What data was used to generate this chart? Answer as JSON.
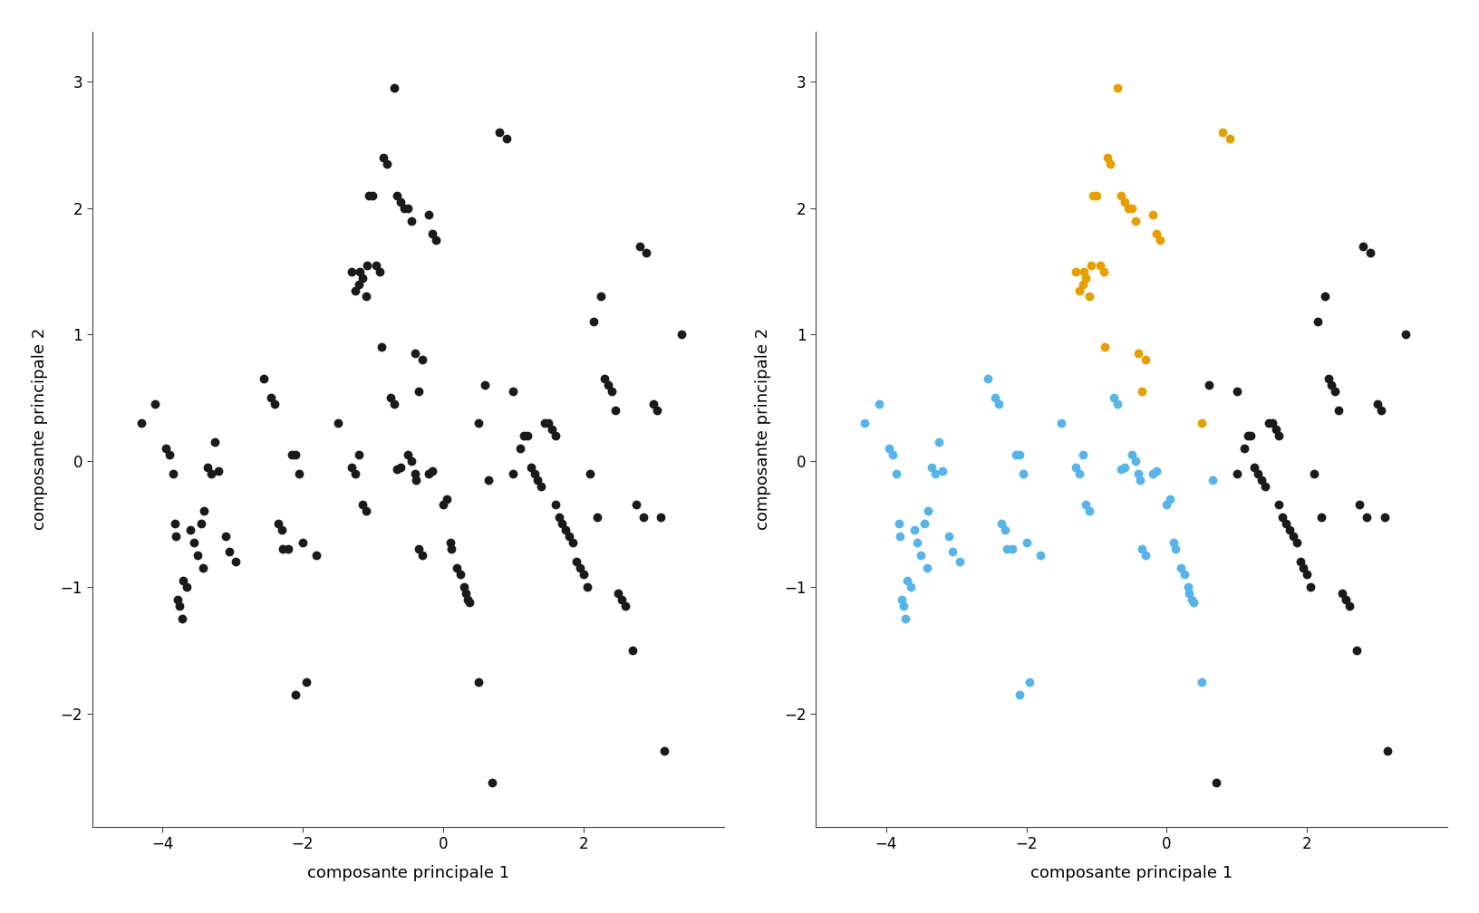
{
  "xlabel": "composante principale 1",
  "ylabel": "composante principale 2",
  "color_black": "#1a1a1a",
  "color_blue": "#56B4E9",
  "color_orange": "#E69F00",
  "blue_points": [
    [
      -4.3,
      0.3
    ],
    [
      -4.1,
      0.45
    ],
    [
      -3.95,
      0.1
    ],
    [
      -3.9,
      0.05
    ],
    [
      -3.85,
      -0.1
    ],
    [
      -3.82,
      -0.5
    ],
    [
      -3.8,
      -0.6
    ],
    [
      -3.78,
      -1.1
    ],
    [
      -3.75,
      -1.15
    ],
    [
      -3.72,
      -1.25
    ],
    [
      -3.7,
      -0.95
    ],
    [
      -3.65,
      -1.0
    ],
    [
      -3.6,
      -0.55
    ],
    [
      -3.55,
      -0.65
    ],
    [
      -3.5,
      -0.75
    ],
    [
      -3.45,
      -0.5
    ],
    [
      -3.42,
      -0.85
    ],
    [
      -3.4,
      -0.4
    ],
    [
      -3.35,
      -0.05
    ],
    [
      -3.3,
      -0.1
    ],
    [
      -3.25,
      0.15
    ],
    [
      -3.2,
      -0.08
    ],
    [
      -3.1,
      -0.6
    ],
    [
      -3.05,
      -0.72
    ],
    [
      -2.95,
      -0.8
    ],
    [
      -2.55,
      0.65
    ],
    [
      -2.45,
      0.5
    ],
    [
      -2.4,
      0.45
    ],
    [
      -2.35,
      -0.5
    ],
    [
      -2.3,
      -0.55
    ],
    [
      -2.28,
      -0.7
    ],
    [
      -2.2,
      -0.7
    ],
    [
      -2.15,
      0.05
    ],
    [
      -2.1,
      0.05
    ],
    [
      -2.05,
      -0.1
    ],
    [
      -2.0,
      -0.65
    ],
    [
      -1.95,
      -1.75
    ],
    [
      -1.8,
      -0.75
    ],
    [
      -1.5,
      0.3
    ],
    [
      -1.3,
      -0.05
    ],
    [
      -1.25,
      -0.1
    ],
    [
      -1.2,
      0.05
    ],
    [
      -1.15,
      -0.35
    ],
    [
      -1.1,
      -0.4
    ],
    [
      -0.75,
      0.5
    ],
    [
      -0.7,
      0.45
    ],
    [
      -0.65,
      -0.07
    ],
    [
      -0.6,
      -0.05
    ],
    [
      -0.5,
      0.05
    ],
    [
      -0.45,
      0.0
    ],
    [
      -0.4,
      -0.1
    ],
    [
      -0.38,
      -0.15
    ],
    [
      -0.35,
      -0.7
    ],
    [
      -0.3,
      -0.75
    ],
    [
      -0.2,
      -0.1
    ],
    [
      -0.15,
      -0.08
    ],
    [
      -2.1,
      -1.85
    ],
    [
      -0.0,
      -0.35
    ],
    [
      0.05,
      -0.3
    ],
    [
      0.1,
      -0.65
    ],
    [
      0.12,
      -0.7
    ],
    [
      0.2,
      -0.85
    ],
    [
      0.25,
      -0.9
    ],
    [
      0.3,
      -1.0
    ],
    [
      0.32,
      -1.05
    ],
    [
      0.35,
      -1.1
    ],
    [
      0.38,
      -1.12
    ],
    [
      0.5,
      -1.75
    ],
    [
      0.65,
      -0.15
    ]
  ],
  "orange_points": [
    [
      -1.3,
      1.5
    ],
    [
      -1.25,
      1.35
    ],
    [
      -1.2,
      1.4
    ],
    [
      -1.18,
      1.5
    ],
    [
      -1.15,
      1.45
    ],
    [
      -1.1,
      1.3
    ],
    [
      -1.08,
      1.55
    ],
    [
      -1.05,
      2.1
    ],
    [
      -1.0,
      2.1
    ],
    [
      -0.95,
      1.55
    ],
    [
      -0.9,
      1.5
    ],
    [
      -0.88,
      0.9
    ],
    [
      -0.85,
      2.4
    ],
    [
      -0.8,
      2.35
    ],
    [
      -0.7,
      2.95
    ],
    [
      -0.65,
      2.1
    ],
    [
      -0.6,
      2.05
    ],
    [
      -0.55,
      2.0
    ],
    [
      -0.5,
      2.0
    ],
    [
      -0.45,
      1.9
    ],
    [
      -0.4,
      0.85
    ],
    [
      -0.35,
      0.55
    ],
    [
      -0.2,
      1.95
    ],
    [
      -0.15,
      1.8
    ],
    [
      -0.1,
      1.75
    ],
    [
      0.5,
      0.3
    ],
    [
      0.8,
      2.6
    ],
    [
      0.9,
      2.55
    ],
    [
      -0.3,
      0.8
    ]
  ],
  "black_points": [
    [
      1.0,
      0.55
    ],
    [
      1.0,
      -0.1
    ],
    [
      1.1,
      0.1
    ],
    [
      1.15,
      0.2
    ],
    [
      1.2,
      0.2
    ],
    [
      1.25,
      -0.05
    ],
    [
      1.3,
      -0.1
    ],
    [
      1.35,
      -0.15
    ],
    [
      1.4,
      -0.2
    ],
    [
      1.45,
      0.3
    ],
    [
      1.5,
      0.3
    ],
    [
      1.55,
      0.25
    ],
    [
      1.6,
      0.2
    ],
    [
      1.6,
      -0.35
    ],
    [
      1.65,
      -0.45
    ],
    [
      1.7,
      -0.5
    ],
    [
      1.75,
      -0.55
    ],
    [
      1.8,
      -0.6
    ],
    [
      1.85,
      -0.65
    ],
    [
      1.9,
      -0.8
    ],
    [
      1.95,
      -0.85
    ],
    [
      2.0,
      -0.9
    ],
    [
      2.05,
      -1.0
    ],
    [
      2.1,
      -0.1
    ],
    [
      2.15,
      1.1
    ],
    [
      2.2,
      -0.45
    ],
    [
      2.25,
      1.3
    ],
    [
      2.3,
      0.65
    ],
    [
      2.35,
      0.6
    ],
    [
      2.4,
      0.55
    ],
    [
      2.45,
      0.4
    ],
    [
      2.5,
      -1.05
    ],
    [
      2.55,
      -1.1
    ],
    [
      2.6,
      -1.15
    ],
    [
      2.7,
      -1.5
    ],
    [
      2.75,
      -0.35
    ],
    [
      2.8,
      1.7
    ],
    [
      2.85,
      -0.45
    ],
    [
      2.9,
      1.65
    ],
    [
      3.0,
      0.45
    ],
    [
      3.05,
      0.4
    ],
    [
      3.1,
      -0.45
    ],
    [
      3.15,
      -2.3
    ],
    [
      3.4,
      1.0
    ],
    [
      0.7,
      -2.55
    ],
    [
      0.6,
      0.6
    ]
  ],
  "xticks": [
    -4,
    -2,
    0,
    2
  ],
  "yticks": [
    -2,
    -1,
    0,
    1,
    2,
    3
  ],
  "xlim": [
    -5.0,
    4.0
  ],
  "ylim": [
    -2.9,
    3.4
  ]
}
